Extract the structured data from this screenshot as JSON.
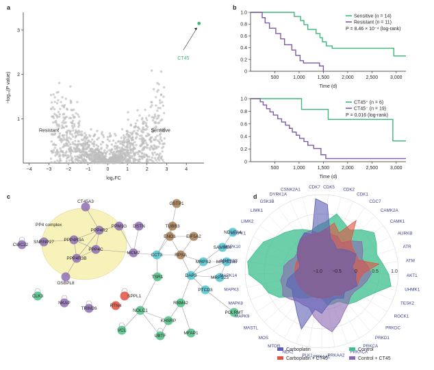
{
  "panel_labels": [
    "a",
    "b",
    "c",
    "d"
  ],
  "chart_data": [
    {
      "panel": "a",
      "type": "scatter",
      "xlabel": "log₂FC",
      "ylabel": "−log₁₀(P value)",
      "xlim": [
        -4.3,
        4.9
      ],
      "ylim": [
        0,
        3.4
      ],
      "xticks": [
        -4,
        -3,
        -2,
        -1,
        0,
        1,
        2,
        3,
        4
      ],
      "yticks": [
        1,
        2,
        3
      ],
      "grid": false,
      "annotations": [
        "Resistant",
        "Sensitive"
      ],
      "highlight": {
        "name": "CT45",
        "x": 4.65,
        "y": 3.15,
        "color": "#39b878"
      },
      "background_points_color": "#bdbdbd"
    },
    {
      "panel": "b-top",
      "type": "line",
      "step": true,
      "xlabel": "Time (d)",
      "ylabel": "",
      "xlim": [
        0,
        3200
      ],
      "ylim": [
        0,
        1.0
      ],
      "xticks": [
        500,
        1000,
        1500,
        2000,
        2500,
        3000
      ],
      "yticks": [
        0,
        0.2,
        0.4,
        0.6,
        0.8,
        1.0
      ],
      "legend": "top-right",
      "stat": "P = 8.46 × 10⁻⁴ (log-rank)",
      "series": [
        {
          "name": "Sensitive (n = 14)",
          "color": "#39b878",
          "times": [
            0,
            900,
            1030,
            1100,
            1180,
            1350,
            1430,
            1480,
            1560,
            1600,
            1680,
            2950,
            3200
          ],
          "surv": [
            1.0,
            0.93,
            0.86,
            0.79,
            0.71,
            0.64,
            0.57,
            0.5,
            0.43,
            0.43,
            0.39,
            0.26,
            0.26
          ]
        },
        {
          "name": "Resistant (n = 11)",
          "color": "#7b5aa6",
          "times": [
            0,
            240,
            300,
            390,
            520,
            620,
            700,
            850,
            930,
            1020,
            1090,
            1420,
            1500
          ],
          "surv": [
            1.0,
            0.91,
            0.82,
            0.73,
            0.64,
            0.55,
            0.45,
            0.36,
            0.27,
            0.18,
            0.14,
            0.09,
            0.0
          ]
        }
      ]
    },
    {
      "panel": "b-bottom",
      "type": "line",
      "step": true,
      "xlabel": "Time (d)",
      "ylabel": "",
      "xlim": [
        0,
        3200
      ],
      "ylim": [
        0,
        1.0
      ],
      "xticks": [
        500,
        1000,
        1500,
        2000,
        2500,
        3000
      ],
      "yticks": [
        0,
        0.2,
        0.4,
        0.6,
        0.8,
        1.0
      ],
      "legend": "top-right",
      "stat": "P = 0.016 (log-rank)",
      "series": [
        {
          "name": "CT45⁺ (n = 6)",
          "color": "#39b878",
          "times": [
            0,
            1050,
            1600,
            2930,
            3200
          ],
          "surv": [
            1.0,
            0.83,
            0.67,
            0.33,
            0.33
          ]
        },
        {
          "name": "CT45⁻ (n = 19)",
          "color": "#7b5aa6",
          "times": [
            0,
            200,
            260,
            330,
            400,
            470,
            560,
            640,
            720,
            800,
            860,
            940,
            1010,
            1100,
            1180,
            1300,
            1450,
            1550,
            3200
          ],
          "surv": [
            1.0,
            0.95,
            0.9,
            0.84,
            0.79,
            0.74,
            0.68,
            0.63,
            0.58,
            0.53,
            0.47,
            0.42,
            0.37,
            0.32,
            0.26,
            0.21,
            0.11,
            0.05,
            0.05
          ]
        }
      ]
    },
    {
      "panel": "c",
      "type": "network",
      "cluster_label": "PP4 complex",
      "node_colors": {
        "green": "#4dbf85",
        "purple": "#8e6fb3",
        "brown": "#a57c52",
        "cyan": "#4fc4cf",
        "red": "#e0523f"
      },
      "nodes": [
        {
          "id": "CT45A3",
          "color": "purple"
        },
        {
          "id": "PPP4R2",
          "color": "purple"
        },
        {
          "id": "PPP4R3A",
          "color": "purple"
        },
        {
          "id": "PPP4R3B",
          "color": "purple"
        },
        {
          "id": "PPP4C",
          "color": "purple"
        },
        {
          "id": "SNRNP27",
          "color": "purple"
        },
        {
          "id": "CWC22",
          "color": "purple"
        },
        {
          "id": "OSBPL8",
          "color": "purple"
        },
        {
          "id": "PPM1G",
          "color": "purple"
        },
        {
          "id": "DSTN",
          "color": "purple"
        },
        {
          "id": "MCM7",
          "color": "purple"
        },
        {
          "id": "CCT3",
          "color": "cyan"
        },
        {
          "id": "TUBB3",
          "color": "brown"
        },
        {
          "id": "ENO1",
          "color": "brown"
        },
        {
          "id": "GSTP1",
          "color": "brown"
        },
        {
          "id": "EIF5A2",
          "color": "brown"
        },
        {
          "id": "RPSA",
          "color": "brown"
        },
        {
          "id": "NDUFA4",
          "color": "cyan"
        },
        {
          "id": "SAMM50",
          "color": "cyan"
        },
        {
          "id": "MRPS2",
          "color": "cyan"
        },
        {
          "id": "MRPS18B",
          "color": "cyan"
        },
        {
          "id": "DAP3",
          "color": "cyan"
        },
        {
          "id": "MRPS23",
          "color": "cyan"
        },
        {
          "id": "PTCD3",
          "color": "cyan"
        },
        {
          "id": "TSR1",
          "color": "green"
        },
        {
          "id": "SPPL1",
          "color": "red"
        },
        {
          "id": "RTN4",
          "color": "red"
        },
        {
          "id": "NOLC1",
          "color": "green"
        },
        {
          "id": "KHSRP",
          "color": "green"
        },
        {
          "id": "RBM42",
          "color": "green"
        },
        {
          "id": "POLRMT",
          "color": "green"
        },
        {
          "id": "UBTF",
          "color": "green"
        },
        {
          "id": "MFAP1",
          "color": "green"
        },
        {
          "id": "VCL",
          "color": "green"
        },
        {
          "id": "CLK3",
          "color": "green"
        },
        {
          "id": "NKAP",
          "color": "purple"
        },
        {
          "id": "TRIM26",
          "color": "purple"
        }
      ],
      "edges": [
        [
          "CT45A3",
          "PPP4R2"
        ],
        [
          "PPP4R2",
          "PPP4R3A"
        ],
        [
          "PPP4R2",
          "PPP4C"
        ],
        [
          "PPP4R2",
          "PPP4R3B"
        ],
        [
          "PPP4R3A",
          "PPP4C"
        ],
        [
          "PPP4R3A",
          "PPP4R3B"
        ],
        [
          "PPP4R3B",
          "PPP4C"
        ],
        [
          "SNRNP27",
          "PPP4R3A"
        ],
        [
          "PPP4R3B",
          "OSBPL8"
        ],
        [
          "PPP4C",
          "MCM7"
        ],
        [
          "PPM1G",
          "MCM7"
        ],
        [
          "PPM1G",
          "PPP4R2"
        ],
        [
          "DSTN",
          "MCM7"
        ],
        [
          "MCM7",
          "CCT3"
        ],
        [
          "CCT3",
          "ENO1"
        ],
        [
          "CCT3",
          "RPSA"
        ],
        [
          "TUBB3",
          "ENO1"
        ],
        [
          "TUBB3",
          "CCT3"
        ],
        [
          "ENO1",
          "GSTP1"
        ],
        [
          "ENO1",
          "RPSA"
        ],
        [
          "ENO1",
          "EIF5A2"
        ],
        [
          "RPSA",
          "EIF5A2"
        ],
        [
          "RPSA",
          "MRPS2"
        ],
        [
          "RPSA",
          "DAP3"
        ],
        [
          "MRPS2",
          "SAMM50"
        ],
        [
          "MRPS2",
          "MRPS18B"
        ],
        [
          "MRPS2",
          "DAP3"
        ],
        [
          "DAP3",
          "MRPS18B"
        ],
        [
          "DAP3",
          "MRPS23"
        ],
        [
          "DAP3",
          "PTCD3"
        ],
        [
          "MRPS18B",
          "MRPS23"
        ],
        [
          "SAMM50",
          "NDUFA4"
        ],
        [
          "PTCD3",
          "POLRMT"
        ],
        [
          "CCT3",
          "TSR1"
        ],
        [
          "TSR1",
          "NOLC1"
        ],
        [
          "NOLC1",
          "UBTF"
        ],
        [
          "NOLC1",
          "KHSRP"
        ],
        [
          "NOLC1",
          "VCL"
        ],
        [
          "KHSRP",
          "RBM42"
        ],
        [
          "RBM42",
          "MFAP1"
        ],
        [
          "RBM42",
          "DAP3"
        ],
        [
          "KHSRP",
          "UBTF"
        ]
      ]
    },
    {
      "panel": "d",
      "type": "radar",
      "r_ticks": [
        -1.0,
        -0.5,
        0,
        0.5,
        1.0
      ],
      "r_range": [
        -1.0,
        1.0
      ],
      "legend": "bottom",
      "axes": [
        "CDK7",
        "CDK5",
        "CDK2",
        "CDK1",
        "CDC7",
        "CAMK2A",
        "CAMK1",
        "AURKB",
        "ATR",
        "ATM",
        "AKT1",
        "UHMK1",
        "TESK2",
        "ROCK1",
        "PRKDC",
        "PRKD1",
        "PRKCA",
        "PRKACA",
        "PRKAA2",
        "PRKAA1",
        "PLK1",
        "NEK2",
        "MTOR",
        "MOS",
        "MASTL",
        "MAPK9",
        "MAPK8",
        "MAPK3",
        "MAPK14",
        "MAPK13",
        "MAPK10",
        "MAPK1",
        "LIMK2",
        "LIMK1",
        "GSK3B",
        "DYRK1A",
        "CSNK2A1"
      ],
      "series": [
        {
          "name": "Carboplatin",
          "color": "#5b5fb5",
          "values": [
            0.9,
            0.75,
            -0.1,
            -0.2,
            -0.3,
            -0.2,
            -0.1,
            0.0,
            -0.1,
            -0.2,
            -0.1,
            -0.1,
            0.0,
            -0.1,
            -0.2,
            -0.1,
            -0.2,
            -0.2,
            -0.1,
            0.1,
            0.0,
            0.6,
            0.3,
            0.1,
            0.0,
            -0.1,
            0.0,
            -0.1,
            -0.3,
            -0.4,
            -0.4,
            -0.3,
            -0.2,
            -0.1,
            0.0,
            0.1,
            0.0
          ]
        },
        {
          "name": "Control",
          "color": "#3cbf8c",
          "values": [
            0.2,
            0.3,
            0.55,
            0.4,
            0.3,
            0.5,
            0.7,
            0.6,
            0.5,
            0.6,
            0.75,
            0.85,
            0.5,
            0.3,
            0.2,
            0.1,
            -0.1,
            -0.1,
            -0.1,
            -0.3,
            -0.3,
            -0.3,
            -0.2,
            -0.1,
            0.0,
            0.3,
            0.5,
            0.6,
            0.9,
            0.95,
            0.8,
            0.7,
            0.5,
            0.4,
            0.3,
            0.2,
            0.1
          ]
        },
        {
          "name": "Carboplatin + CT45",
          "color": "#e4513f",
          "values": [
            0.0,
            0.1,
            0.3,
            0.1,
            0.6,
            0.1,
            0.0,
            0.0,
            0.0,
            0.5,
            0.1,
            0.0,
            0.0,
            -0.1,
            -0.2,
            -0.2,
            -0.3,
            -0.3,
            -0.3,
            -0.3,
            -0.3,
            -0.3,
            -0.3,
            -0.3,
            -0.3,
            -0.3,
            -0.3,
            -0.3,
            -0.3,
            -0.3,
            -0.3,
            -0.3,
            -0.2,
            -0.1,
            0.0,
            0.0,
            0.0
          ]
        },
        {
          "name": "Control + CT45",
          "color": "#8b66b1",
          "values": [
            0.0,
            0.1,
            0.0,
            0.0,
            -0.1,
            0.1,
            0.3,
            0.2,
            0.1,
            0.2,
            0.3,
            0.2,
            0.1,
            0.0,
            0.0,
            0.1,
            0.2,
            0.4,
            0.6,
            0.4,
            0.2,
            0.0,
            0.0,
            0.0,
            0.1,
            0.2,
            0.1,
            0.1,
            0.0,
            0.0,
            -0.1,
            -0.2,
            -0.2,
            -0.1,
            0.0,
            0.1,
            0.1
          ]
        }
      ]
    }
  ]
}
